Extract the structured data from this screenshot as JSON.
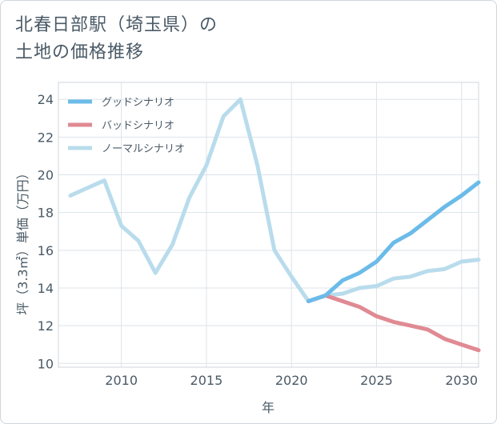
{
  "title_line1": "北春日部駅（埼玉県）の",
  "title_line2": "土地の価格推移",
  "chart_data": {
    "type": "line",
    "xlabel": "年",
    "ylabel": "坪（3.3㎡）単価（万円）",
    "xlim": [
      2006.3,
      2031
    ],
    "ylim": [
      9.8,
      24.9
    ],
    "xticks": [
      2010,
      2015,
      2020,
      2025,
      2030
    ],
    "yticks": [
      10,
      12,
      14,
      16,
      18,
      20,
      22,
      24
    ],
    "grid": true,
    "legend_position": "top-left",
    "series": [
      {
        "name": "グッドシナリオ",
        "color": "#6bbbe9",
        "x": [
          2021,
          2022,
          2023,
          2024,
          2025,
          2026,
          2027,
          2028,
          2029,
          2030,
          2031
        ],
        "y": [
          13.3,
          13.6,
          14.4,
          14.8,
          15.4,
          16.4,
          16.9,
          17.6,
          18.3,
          18.9,
          19.6
        ]
      },
      {
        "name": "バッドシナリオ",
        "color": "#e08a93",
        "x": [
          2021,
          2022,
          2023,
          2024,
          2025,
          2026,
          2027,
          2028,
          2029,
          2030,
          2031
        ],
        "y": [
          13.3,
          13.6,
          13.3,
          13.0,
          12.5,
          12.2,
          12.0,
          11.8,
          11.3,
          11.0,
          10.7
        ]
      },
      {
        "name": "ノーマルシナリオ",
        "color": "#b9dcec",
        "x": [
          2007,
          2008,
          2009,
          2010,
          2011,
          2012,
          2013,
          2014,
          2015,
          2016,
          2017,
          2018,
          2019,
          2020,
          2021,
          2022,
          2023,
          2024,
          2025,
          2026,
          2027,
          2028,
          2029,
          2030,
          2031
        ],
        "y": [
          18.9,
          19.3,
          19.7,
          17.3,
          16.5,
          14.8,
          16.3,
          18.8,
          20.5,
          23.1,
          24.0,
          20.5,
          16.0,
          14.6,
          13.3,
          13.6,
          13.7,
          14.0,
          14.1,
          14.5,
          14.6,
          14.9,
          15.0,
          15.4,
          15.5
        ]
      }
    ]
  }
}
